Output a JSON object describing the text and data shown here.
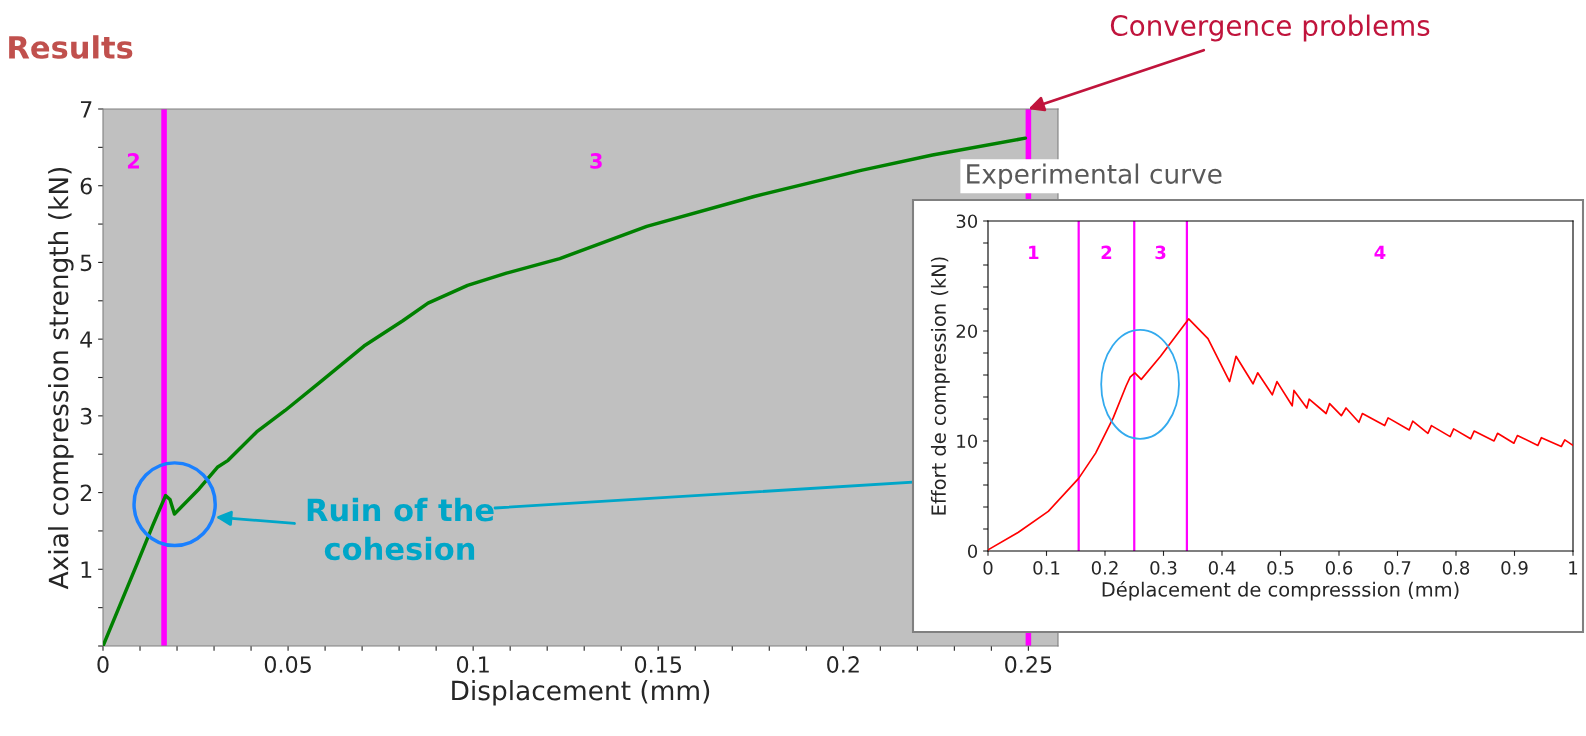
{
  "chart_data": [
    {
      "type": "line",
      "title": "Results",
      "xlabel": "Displacement (mm)",
      "ylabel": "Axial compression strength (kN)",
      "series": [
        {
          "color": "#008000",
          "x": [
            0,
            0.0092,
            0.0135,
            0.0169,
            0.0181,
            0.0193,
            0.026,
            0.0309,
            0.0338,
            0.0415,
            0.0492,
            0.0589,
            0.0705,
            0.081,
            0.0878,
            0.0985,
            0.109,
            0.1234,
            0.1469,
            0.1759,
            0.2048,
            0.2241,
            0.2492
          ],
          "values": [
            0,
            1.07,
            1.58,
            1.96,
            1.91,
            1.72,
            2.05,
            2.33,
            2.42,
            2.79,
            3.07,
            3.45,
            3.91,
            4.24,
            4.47,
            4.7,
            4.86,
            5.05,
            5.47,
            5.86,
            6.2,
            6.4,
            6.62
          ]
        }
      ],
      "xlim": [
        0,
        0.258
      ],
      "ylim": [
        0,
        7
      ],
      "xticks": [
        0,
        {
          "value": 0.01,
          "label": null
        },
        {
          "value": 0.02,
          "label": null
        },
        {
          "value": 0.03,
          "label": null
        },
        {
          "value": 0.04,
          "label": null
        },
        0.05,
        {
          "value": 0.06,
          "label": null
        },
        {
          "value": 0.07,
          "label": null
        },
        {
          "value": 0.08,
          "label": null
        },
        {
          "value": 0.09,
          "label": null
        },
        0.1,
        {
          "value": 0.11,
          "label": null
        },
        {
          "value": 0.12,
          "label": null
        },
        {
          "value": 0.13,
          "label": null
        },
        {
          "value": 0.14,
          "label": null
        },
        0.15,
        {
          "value": 0.16,
          "label": null
        },
        {
          "value": 0.17,
          "label": null
        },
        {
          "value": 0.18,
          "label": null
        },
        {
          "value": 0.19,
          "label": null
        },
        0.2,
        {
          "value": 0.21,
          "label": null
        },
        {
          "value": 0.22,
          "label": null
        },
        {
          "value": 0.23,
          "label": null
        },
        {
          "value": 0.24,
          "label": null
        },
        0.25
      ],
      "yticks": [
        {
          "value": 0,
          "label": null
        },
        {
          "value": 0.5,
          "label": null
        },
        1,
        {
          "value": 1.5,
          "label": null
        },
        2,
        {
          "value": 2.5,
          "label": null
        },
        3,
        {
          "value": 3.5,
          "label": null
        },
        4,
        {
          "value": 4.5,
          "label": null
        },
        5,
        {
          "value": 5.5,
          "label": null
        },
        6,
        {
          "value": 6.5,
          "label": null
        },
        7
      ],
      "ref_lines": [
        {
          "axis": "x",
          "value": 0.0165,
          "color": "#ff00ff"
        },
        {
          "axis": "x",
          "value": 0.25,
          "color": "#ff00ff"
        }
      ],
      "annotations": [
        "2",
        "3",
        "Ruin of the\ncohesion",
        {
          "text": "Convergence problems",
          "x": 0.25,
          "y": 7
        }
      ],
      "grid": false,
      "marker": "none",
      "line_style": "solid"
    },
    {
      "type": "line",
      "title": "Experimental curve",
      "xlabel": "Déplacement de compresssion (mm)",
      "ylabel": "Effort de compression (kN)",
      "series": [
        {
          "color": "#ff0000",
          "x": [
            0,
            0.052,
            0.103,
            0.155,
            0.184,
            0.214,
            0.236,
            0.243,
            0.251,
            0.262,
            0.295,
            0.343,
            0.376,
            0.413,
            0.424,
            0.453,
            0.461,
            0.486,
            0.494,
            0.52,
            0.523,
            0.545,
            0.549,
            0.578,
            0.584,
            0.604,
            0.612,
            0.634,
            0.64,
            0.678,
            0.684,
            0.72,
            0.726,
            0.752,
            0.758,
            0.79,
            0.796,
            0.825,
            0.831,
            0.865,
            0.871,
            0.899,
            0.905,
            0.94,
            0.946,
            0.98,
            0.986,
            1.0
          ],
          "values": [
            0.1,
            1.7,
            3.6,
            6.6,
            8.9,
            12.1,
            15.0,
            15.8,
            16.2,
            15.6,
            17.7,
            21.1,
            19.3,
            15.4,
            17.7,
            15.2,
            16.2,
            14.2,
            15.4,
            13.2,
            14.6,
            13.0,
            13.8,
            12.5,
            13.4,
            12.3,
            13.0,
            11.7,
            12.5,
            11.4,
            12.1,
            11.0,
            11.8,
            10.7,
            11.4,
            10.4,
            11.1,
            10.2,
            10.9,
            10.0,
            10.7,
            9.8,
            10.5,
            9.6,
            10.3,
            9.5,
            10.1,
            9.6
          ]
        }
      ],
      "xlim": [
        0,
        1
      ],
      "ylim": [
        0,
        30
      ],
      "xticks": [
        {
          "value": 0,
          "label": "0"
        },
        0.1,
        0.2,
        0.3,
        0.4,
        0.5,
        0.6,
        0.7,
        0.8,
        0.9,
        {
          "value": 1,
          "label": "1"
        }
      ],
      "yticks": [
        0,
        {
          "value": 2,
          "label": null
        },
        {
          "value": 4,
          "label": null
        },
        {
          "value": 6,
          "label": null
        },
        {
          "value": 8,
          "label": null
        },
        10,
        {
          "value": 12,
          "label": null
        },
        {
          "value": 14,
          "label": null
        },
        {
          "value": 16,
          "label": null
        },
        {
          "value": 18,
          "label": null
        },
        20,
        {
          "value": 22,
          "label": null
        },
        {
          "value": 24,
          "label": null
        },
        {
          "value": 26,
          "label": null
        },
        {
          "value": 28,
          "label": null
        },
        30
      ],
      "ref_lines": [
        {
          "axis": "x",
          "value": 0.155,
          "color": "#ff00ff"
        },
        {
          "axis": "x",
          "value": 0.25,
          "color": "#ff00ff"
        },
        {
          "axis": "x",
          "value": 0.34,
          "color": "#ff00ff"
        }
      ],
      "annotations": [
        "1",
        "2",
        "3",
        "4"
      ],
      "grid": false,
      "marker": "none",
      "line_style": "solid"
    }
  ]
}
